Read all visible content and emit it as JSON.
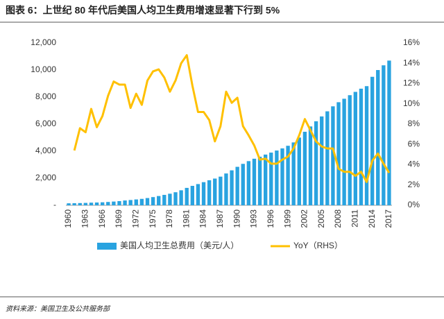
{
  "chart_data": {
    "type": "bar-line",
    "title": "图表 6：上世纪 80 年代后美国人均卫生费用增速显著下行到 5%",
    "source": "资料来源：美国卫生及公共服务部",
    "categories": [
      "1960",
      null,
      null,
      "1963",
      null,
      null,
      "1966",
      null,
      null,
      "1969",
      null,
      null,
      "1972",
      null,
      null,
      "1975",
      null,
      null,
      "1978",
      null,
      null,
      "1981",
      null,
      null,
      "1984",
      null,
      null,
      "1987",
      null,
      null,
      "1990",
      null,
      null,
      "1993",
      null,
      null,
      "1996",
      null,
      null,
      "1999",
      null,
      null,
      "2002",
      null,
      null,
      "2005",
      null,
      null,
      "2008",
      null,
      null,
      "2011",
      null,
      null,
      "2014",
      null,
      null,
      "2017"
    ],
    "series": [
      {
        "name": "美国人均卫生总费用（美元/人）",
        "kind": "bar",
        "color": "#29a3e0",
        "values": [
          146,
          153,
          164,
          176,
          194,
          205,
          221,
          245,
          275,
          308,
          355,
          389,
          432,
          474,
          535,
          605,
          685,
          768,
          855,
          964,
          1108,
          1286,
          1435,
          1568,
          1709,
          1851,
          1975,
          2118,
          2352,
          2584,
          2843,
          3063,
          3265,
          3442,
          3592,
          3749,
          3895,
          4048,
          4206,
          4400,
          4648,
          5008,
          5435,
          5829,
          6212,
          6570,
          6947,
          7317,
          7621,
          7877,
          8141,
          8385,
          8622,
          8809,
          9500,
          10000,
          10350,
          10700
        ]
      },
      {
        "name": "YoY（RHS）",
        "kind": "line",
        "axis": "y2",
        "color": "#ffc000",
        "values": [
          null,
          5.4,
          7.6,
          7.2,
          9.5,
          7.7,
          8.8,
          10.8,
          12.2,
          11.9,
          11.9,
          9.6,
          11.0,
          9.9,
          12.3,
          13.2,
          13.4,
          12.6,
          11.2,
          12.3,
          14.0,
          14.8,
          11.8,
          9.2,
          9.2,
          8.4,
          6.3,
          7.8,
          11.2,
          10.1,
          10.6,
          7.8,
          6.9,
          5.9,
          4.5,
          4.6,
          4.1,
          4.1,
          4.5,
          4.8,
          5.6,
          6.9,
          8.5,
          7.4,
          6.3,
          5.8,
          5.6,
          5.6,
          3.6,
          3.3,
          3.3,
          2.9,
          3.3,
          2.3,
          4.4,
          5.1,
          4.1,
          3.2
        ]
      }
    ],
    "ylim": [
      0,
      12000
    ],
    "yticks": [
      {
        "value": 0,
        "label": "-"
      },
      {
        "value": 2000,
        "label": "2,000"
      },
      {
        "value": 4000,
        "label": "4,000"
      },
      {
        "value": 6000,
        "label": "6,000"
      },
      {
        "value": 8000,
        "label": "8,000"
      },
      {
        "value": 10000,
        "label": "10,000"
      },
      {
        "value": 12000,
        "label": "12,000"
      }
    ],
    "y2lim": [
      0,
      16
    ],
    "y2ticks": [
      {
        "value": 0,
        "label": "0%"
      },
      {
        "value": 2,
        "label": "2%"
      },
      {
        "value": 4,
        "label": "4%"
      },
      {
        "value": 6,
        "label": "6%"
      },
      {
        "value": 8,
        "label": "8%"
      },
      {
        "value": 10,
        "label": "10%"
      },
      {
        "value": 12,
        "label": "12%"
      },
      {
        "value": 14,
        "label": "14%"
      },
      {
        "value": 16,
        "label": "16%"
      }
    ],
    "grid": false,
    "legend": "bottom"
  }
}
